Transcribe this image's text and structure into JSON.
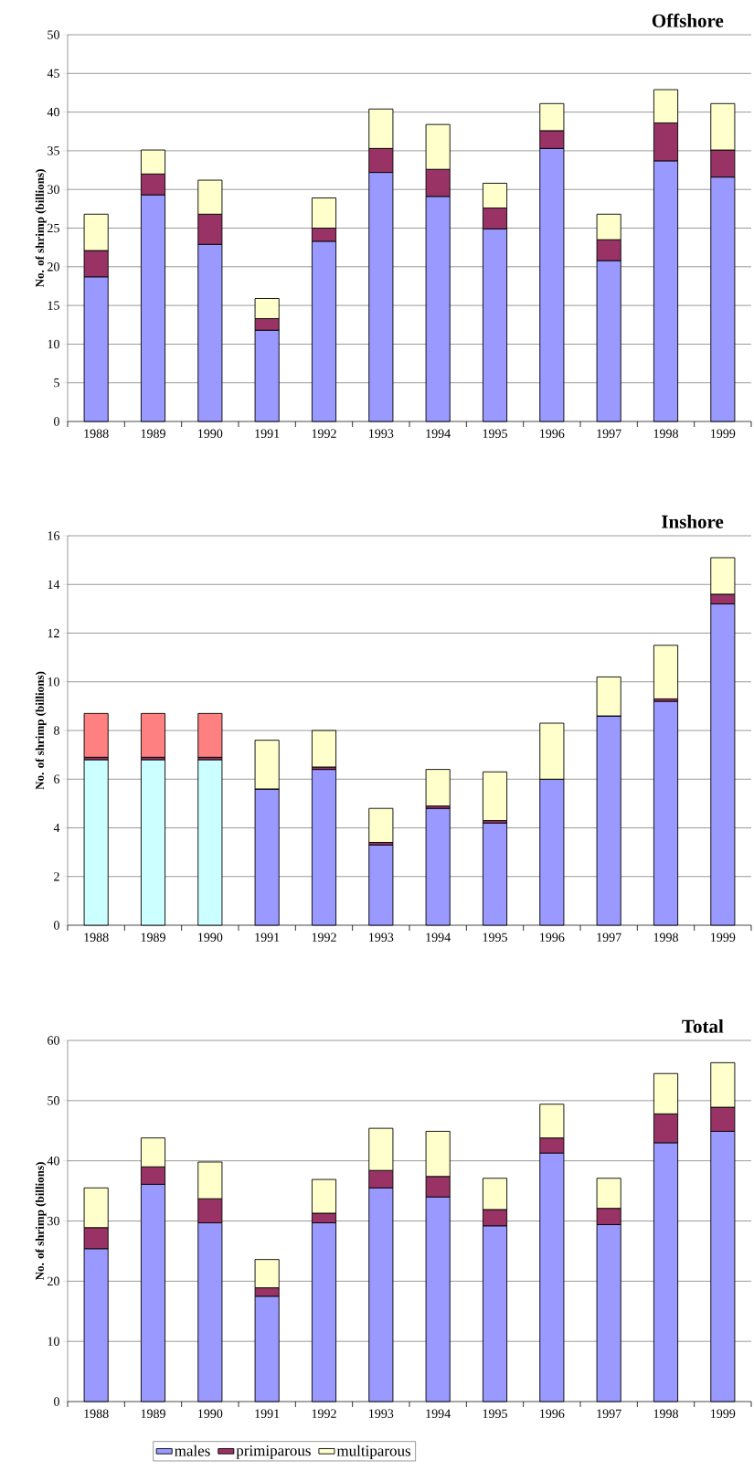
{
  "chart_data": [
    {
      "type": "bar",
      "title": "Offshore",
      "ylabel": "No. of shrimp (billions)",
      "categories": [
        "1988",
        "1989",
        "1990",
        "1991",
        "1992",
        "1993",
        "1994",
        "1995",
        "1996",
        "1997",
        "1998",
        "1999"
      ],
      "stacked": true,
      "ylim": [
        0,
        50
      ],
      "yticks": [
        0,
        5,
        10,
        15,
        20,
        25,
        30,
        35,
        40,
        45,
        50
      ],
      "grid": "y",
      "legend": false,
      "series": [
        {
          "color": "#9999ff",
          "values": [
            18.7,
            29.3,
            22.9,
            11.8,
            23.3,
            32.2,
            29.1,
            24.9,
            35.3,
            20.8,
            33.7,
            31.6
          ]
        },
        {
          "color": "#993366",
          "values": [
            3.4,
            2.7,
            3.9,
            1.5,
            1.7,
            3.1,
            3.5,
            2.7,
            2.3,
            2.7,
            4.9,
            3.5
          ]
        },
        {
          "color": "#ffffcc",
          "values": [
            4.7,
            3.1,
            4.4,
            2.6,
            3.9,
            5.1,
            5.8,
            3.2,
            3.5,
            3.3,
            4.3,
            6.0
          ]
        }
      ]
    },
    {
      "type": "bar",
      "title": "Inshore",
      "ylabel": "No. of shrimp (billions)",
      "categories": [
        "1988",
        "1989",
        "1990",
        "1991",
        "1992",
        "1993",
        "1994",
        "1995",
        "1996",
        "1997",
        "1998",
        "1999"
      ],
      "stacked": true,
      "ylim": [
        0,
        16
      ],
      "yticks": [
        0,
        2,
        4,
        6,
        8,
        10,
        12,
        14,
        16
      ],
      "grid": "y",
      "legend": false,
      "series": [
        {
          "colors": [
            "#ccffff",
            "#ccffff",
            "#ccffff",
            "#9999ff",
            "#9999ff",
            "#9999ff",
            "#9999ff",
            "#9999ff",
            "#9999ff",
            "#9999ff",
            "#9999ff",
            "#9999ff"
          ],
          "values": [
            6.8,
            6.8,
            6.8,
            5.6,
            6.4,
            3.3,
            4.8,
            4.2,
            6.0,
            8.6,
            9.2,
            13.2
          ]
        },
        {
          "color": "#993366",
          "values": [
            0.1,
            0.1,
            0.1,
            0,
            0.1,
            0.1,
            0.1,
            0.1,
            0,
            0,
            0.1,
            0.4
          ]
        },
        {
          "colors": [
            "#ff8080",
            "#ff8080",
            "#ff8080",
            "#ffffcc",
            "#ffffcc",
            "#ffffcc",
            "#ffffcc",
            "#ffffcc",
            "#ffffcc",
            "#ffffcc",
            "#ffffcc",
            "#ffffcc"
          ],
          "values": [
            1.8,
            1.8,
            1.8,
            2.0,
            1.5,
            1.4,
            1.5,
            2.0,
            2.3,
            1.6,
            2.2,
            1.5
          ]
        }
      ]
    },
    {
      "type": "bar",
      "title": "Total",
      "ylabel": "No. of shrimp (billions)",
      "categories": [
        "1988",
        "1989",
        "1990",
        "1991",
        "1992",
        "1993",
        "1994",
        "1995",
        "1996",
        "1997",
        "1998",
        "1999"
      ],
      "stacked": true,
      "ylim": [
        0,
        60
      ],
      "yticks": [
        0,
        10,
        20,
        30,
        40,
        50,
        60
      ],
      "grid": "y",
      "legend": "bottom",
      "series": [
        {
          "name": "males",
          "color": "#9999ff",
          "values": [
            25.4,
            36.1,
            29.7,
            17.5,
            29.7,
            35.5,
            34.0,
            29.2,
            41.3,
            29.4,
            43.0,
            44.9
          ]
        },
        {
          "name": "primiparous",
          "color": "#993366",
          "values": [
            3.5,
            2.9,
            4.0,
            1.4,
            1.6,
            2.9,
            3.4,
            2.7,
            2.5,
            2.7,
            4.8,
            4.0
          ]
        },
        {
          "name": "multiparous",
          "color": "#ffffcc",
          "values": [
            6.6,
            4.8,
            6.1,
            4.7,
            5.6,
            7.0,
            7.5,
            5.2,
            5.6,
            5.0,
            6.7,
            7.4
          ]
        }
      ]
    }
  ]
}
